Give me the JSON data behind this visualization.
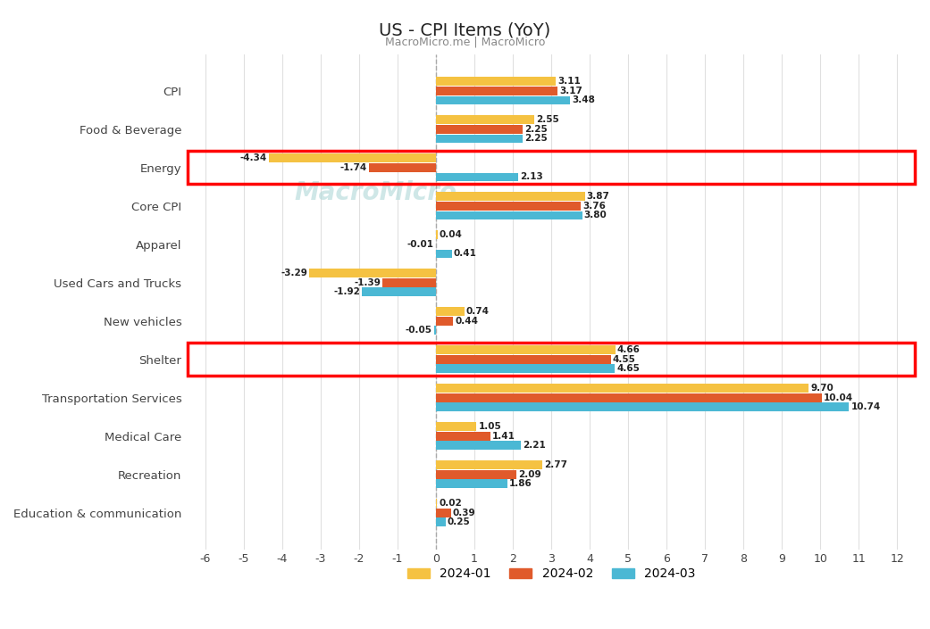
{
  "title": "US - CPI Items (YoY)",
  "subtitle": "MacroMicro.me | MacroMicro",
  "categories": [
    "CPI",
    "Food & Beverage",
    "Energy",
    "Core CPI",
    "Apparel",
    "Used Cars and Trucks",
    "New vehicles",
    "Shelter",
    "Transportation Services",
    "Medical Care",
    "Recreation",
    "Education & communication"
  ],
  "series": {
    "2024-01": [
      3.11,
      2.55,
      -4.34,
      3.87,
      0.04,
      -3.29,
      0.74,
      4.66,
      9.7,
      1.05,
      2.77,
      0.02
    ],
    "2024-02": [
      3.17,
      2.25,
      -1.74,
      3.76,
      -0.01,
      -1.39,
      0.44,
      4.55,
      10.04,
      1.41,
      2.09,
      0.39
    ],
    "2024-03": [
      3.48,
      2.25,
      2.13,
      3.8,
      0.41,
      -1.92,
      -0.05,
      4.65,
      10.74,
      2.21,
      1.86,
      0.25
    ]
  },
  "colors": {
    "2024-01": "#F5C242",
    "2024-02": "#E05A2B",
    "2024-03": "#4BB8D4"
  },
  "xlim": [
    -6.5,
    12.5
  ],
  "xticks": [
    -6,
    -5,
    -4,
    -3,
    -2,
    -1,
    0,
    1,
    2,
    3,
    4,
    5,
    6,
    7,
    8,
    9,
    10,
    11,
    12
  ],
  "highlight_rows": [
    2,
    7
  ],
  "bar_height": 0.25,
  "background_color": "#ffffff",
  "grid_color": "#e0e0e0",
  "watermark": "MacroMicro",
  "watermark_color": "#b0d8d8",
  "label_fontsize": 7.5
}
